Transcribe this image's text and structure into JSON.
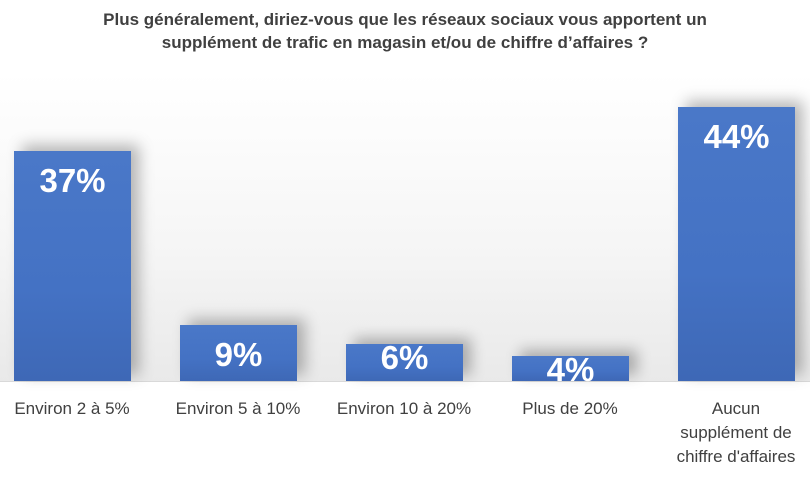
{
  "chart_data": {
    "type": "bar",
    "title_lines": [
      "Plus généralement, diriez-vous que les réseaux sociaux vous apportent un",
      "supplément de trafic en magasin et/ou de chiffre d’affaires ?"
    ],
    "categories": [
      "Environ 2 à 5%",
      "Environ 5 à 10%",
      "Environ 10 à 20%",
      "Plus de 20%",
      "Aucun supplément de chiffre d'affaires"
    ],
    "values": [
      37,
      9,
      6,
      4,
      44
    ],
    "data_labels": [
      "37%",
      "9%",
      "6%",
      "4%",
      "44%"
    ],
    "ylim": [
      0,
      45
    ],
    "grid": false,
    "legend": "none",
    "colors": {
      "bar": "#4472C4",
      "title": "#404040",
      "label": "#FFFFFF"
    }
  }
}
